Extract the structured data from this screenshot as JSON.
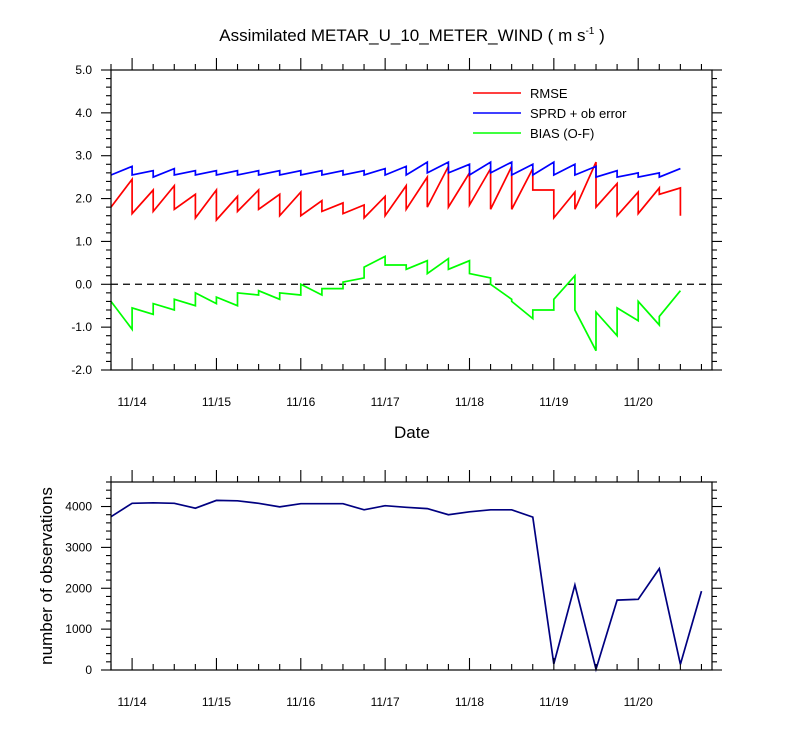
{
  "chart_data": [
    {
      "type": "line",
      "title": "Assimilated METAR_U_10_METER_WIND ( m s",
      "title_sup": "-1",
      "title_end": " )",
      "xlabel": "Date",
      "ylabel": "",
      "xlim": [
        13.75,
        20.875
      ],
      "ylim": [
        -2.0,
        5.0
      ],
      "x_ticks": [
        14,
        15,
        16,
        17,
        18,
        19,
        20
      ],
      "x_tick_labels": [
        "11/14",
        "11/15",
        "11/16",
        "11/17",
        "11/18",
        "11/19",
        "11/20"
      ],
      "y_ticks": [
        -2,
        -1,
        0,
        1,
        2,
        3,
        4,
        5
      ],
      "y_tick_labels": [
        "-2.0",
        "-1.0",
        "0.0",
        "1.0",
        "2.0",
        "3.0",
        "4.0",
        "5.0"
      ],
      "zero_line": {
        "y": 0,
        "style": "dashed",
        "color": "#000000"
      },
      "legend_position": "top-right",
      "series": [
        {
          "name": "RMSE",
          "color": "#ff0000",
          "points": [
            [
              13.75,
              1.8
            ],
            [
              14.0,
              2.45
            ],
            [
              14.0,
              1.65
            ],
            [
              14.25,
              2.2
            ],
            [
              14.25,
              1.7
            ],
            [
              14.5,
              2.3
            ],
            [
              14.5,
              1.75
            ],
            [
              14.75,
              2.1
            ],
            [
              14.75,
              1.55
            ],
            [
              15.0,
              2.2
            ],
            [
              15.0,
              1.5
            ],
            [
              15.25,
              2.05
            ],
            [
              15.25,
              1.7
            ],
            [
              15.5,
              2.2
            ],
            [
              15.5,
              1.75
            ],
            [
              15.75,
              2.1
            ],
            [
              15.75,
              1.6
            ],
            [
              16.0,
              2.15
            ],
            [
              16.0,
              1.6
            ],
            [
              16.25,
              1.95
            ],
            [
              16.25,
              1.7
            ],
            [
              16.5,
              1.9
            ],
            [
              16.5,
              1.65
            ],
            [
              16.75,
              1.85
            ],
            [
              16.75,
              1.55
            ],
            [
              17.0,
              2.05
            ],
            [
              17.0,
              1.6
            ],
            [
              17.25,
              2.3
            ],
            [
              17.25,
              1.75
            ],
            [
              17.5,
              2.5
            ],
            [
              17.5,
              1.8
            ],
            [
              17.75,
              2.75
            ],
            [
              17.75,
              1.8
            ],
            [
              18.0,
              2.6
            ],
            [
              18.0,
              1.85
            ],
            [
              18.25,
              2.7
            ],
            [
              18.25,
              1.75
            ],
            [
              18.5,
              2.75
            ],
            [
              18.5,
              1.75
            ],
            [
              18.75,
              2.7
            ],
            [
              18.75,
              2.2
            ],
            [
              19.0,
              2.2
            ],
            [
              19.0,
              1.55
            ],
            [
              19.25,
              2.15
            ],
            [
              19.25,
              1.75
            ],
            [
              19.5,
              2.85
            ],
            [
              19.5,
              1.8
            ],
            [
              19.75,
              2.35
            ],
            [
              19.75,
              1.6
            ],
            [
              20.0,
              2.15
            ],
            [
              20.0,
              1.65
            ],
            [
              20.25,
              2.25
            ],
            [
              20.25,
              2.1
            ],
            [
              20.5,
              2.25
            ],
            [
              20.5,
              1.6
            ]
          ]
        },
        {
          "name": "SPRD + ob error",
          "color": "#0000ff",
          "points": [
            [
              13.75,
              2.55
            ],
            [
              14.0,
              2.75
            ],
            [
              14.0,
              2.55
            ],
            [
              14.25,
              2.65
            ],
            [
              14.25,
              2.5
            ],
            [
              14.5,
              2.7
            ],
            [
              14.5,
              2.55
            ],
            [
              14.75,
              2.65
            ],
            [
              14.75,
              2.55
            ],
            [
              15.0,
              2.65
            ],
            [
              15.0,
              2.55
            ],
            [
              15.25,
              2.65
            ],
            [
              15.25,
              2.55
            ],
            [
              15.5,
              2.65
            ],
            [
              15.5,
              2.55
            ],
            [
              15.75,
              2.65
            ],
            [
              15.75,
              2.55
            ],
            [
              16.0,
              2.65
            ],
            [
              16.0,
              2.55
            ],
            [
              16.25,
              2.65
            ],
            [
              16.25,
              2.55
            ],
            [
              16.5,
              2.65
            ],
            [
              16.5,
              2.55
            ],
            [
              16.75,
              2.65
            ],
            [
              16.75,
              2.55
            ],
            [
              17.0,
              2.7
            ],
            [
              17.0,
              2.55
            ],
            [
              17.25,
              2.75
            ],
            [
              17.25,
              2.55
            ],
            [
              17.5,
              2.85
            ],
            [
              17.5,
              2.6
            ],
            [
              17.75,
              2.85
            ],
            [
              17.75,
              2.6
            ],
            [
              18.0,
              2.8
            ],
            [
              18.0,
              2.55
            ],
            [
              18.25,
              2.85
            ],
            [
              18.25,
              2.6
            ],
            [
              18.5,
              2.85
            ],
            [
              18.5,
              2.55
            ],
            [
              18.75,
              2.8
            ],
            [
              18.75,
              2.55
            ],
            [
              19.0,
              2.85
            ],
            [
              19.0,
              2.55
            ],
            [
              19.25,
              2.8
            ],
            [
              19.25,
              2.55
            ],
            [
              19.5,
              2.75
            ],
            [
              19.5,
              2.5
            ],
            [
              19.75,
              2.65
            ],
            [
              19.75,
              2.5
            ],
            [
              20.0,
              2.6
            ],
            [
              20.0,
              2.5
            ],
            [
              20.25,
              2.6
            ],
            [
              20.25,
              2.5
            ],
            [
              20.5,
              2.7
            ]
          ]
        },
        {
          "name": "BIAS (O-F)",
          "color": "#00ff00",
          "points": [
            [
              13.75,
              -0.4
            ],
            [
              14.0,
              -1.05
            ],
            [
              14.0,
              -0.55
            ],
            [
              14.25,
              -0.7
            ],
            [
              14.25,
              -0.45
            ],
            [
              14.5,
              -0.6
            ],
            [
              14.5,
              -0.35
            ],
            [
              14.75,
              -0.5
            ],
            [
              14.75,
              -0.2
            ],
            [
              15.0,
              -0.45
            ],
            [
              15.0,
              -0.3
            ],
            [
              15.25,
              -0.5
            ],
            [
              15.25,
              -0.2
            ],
            [
              15.5,
              -0.25
            ],
            [
              15.5,
              -0.15
            ],
            [
              15.75,
              -0.35
            ],
            [
              15.75,
              -0.2
            ],
            [
              16.0,
              -0.25
            ],
            [
              16.0,
              0.0
            ],
            [
              16.25,
              -0.25
            ],
            [
              16.25,
              -0.1
            ],
            [
              16.5,
              -0.1
            ],
            [
              16.5,
              0.05
            ],
            [
              16.75,
              0.15
            ],
            [
              16.75,
              0.4
            ],
            [
              17.0,
              0.65
            ],
            [
              17.0,
              0.45
            ],
            [
              17.25,
              0.45
            ],
            [
              17.25,
              0.35
            ],
            [
              17.5,
              0.55
            ],
            [
              17.5,
              0.25
            ],
            [
              17.75,
              0.6
            ],
            [
              17.75,
              0.35
            ],
            [
              18.0,
              0.55
            ],
            [
              18.0,
              0.25
            ],
            [
              18.25,
              0.15
            ],
            [
              18.25,
              0.0
            ],
            [
              18.5,
              -0.35
            ],
            [
              18.5,
              -0.4
            ],
            [
              18.75,
              -0.8
            ],
            [
              18.75,
              -0.6
            ],
            [
              19.0,
              -0.6
            ],
            [
              19.0,
              -0.35
            ],
            [
              19.25,
              0.2
            ],
            [
              19.25,
              -0.6
            ],
            [
              19.5,
              -1.55
            ],
            [
              19.5,
              -0.65
            ],
            [
              19.75,
              -1.2
            ],
            [
              19.75,
              -0.55
            ],
            [
              20.0,
              -0.85
            ],
            [
              20.0,
              -0.4
            ],
            [
              20.25,
              -0.95
            ],
            [
              20.25,
              -0.75
            ],
            [
              20.5,
              -0.15
            ]
          ]
        }
      ]
    },
    {
      "type": "line",
      "title": "",
      "xlabel": "",
      "ylabel": "number of observations",
      "xlim": [
        13.75,
        20.875
      ],
      "ylim": [
        0,
        4600
      ],
      "x_ticks": [
        14,
        15,
        16,
        17,
        18,
        19,
        20
      ],
      "x_tick_labels": [
        "11/14",
        "11/15",
        "11/16",
        "11/17",
        "11/18",
        "11/19",
        "11/20"
      ],
      "y_ticks": [
        0,
        1000,
        2000,
        3000,
        4000
      ],
      "y_tick_labels": [
        "0",
        "1000",
        "2000",
        "3000",
        "4000"
      ],
      "series": [
        {
          "color": "#000080",
          "points": [
            [
              13.75,
              3750
            ],
            [
              14.0,
              4080
            ],
            [
              14.25,
              4090
            ],
            [
              14.5,
              4080
            ],
            [
              14.75,
              3960
            ],
            [
              15.0,
              4150
            ],
            [
              15.25,
              4140
            ],
            [
              15.5,
              4080
            ],
            [
              15.75,
              3990
            ],
            [
              16.0,
              4070
            ],
            [
              16.25,
              4070
            ],
            [
              16.5,
              4070
            ],
            [
              16.75,
              3920
            ],
            [
              17.0,
              4020
            ],
            [
              17.25,
              3980
            ],
            [
              17.5,
              3950
            ],
            [
              17.75,
              3800
            ],
            [
              18.0,
              3870
            ],
            [
              18.25,
              3920
            ],
            [
              18.5,
              3920
            ],
            [
              18.75,
              3740
            ],
            [
              19.0,
              150
            ],
            [
              19.25,
              2080
            ],
            [
              19.5,
              20
            ],
            [
              19.75,
              1710
            ],
            [
              20.0,
              1730
            ],
            [
              20.25,
              2480
            ],
            [
              20.5,
              140
            ],
            [
              20.75,
              1930
            ]
          ]
        }
      ]
    }
  ]
}
